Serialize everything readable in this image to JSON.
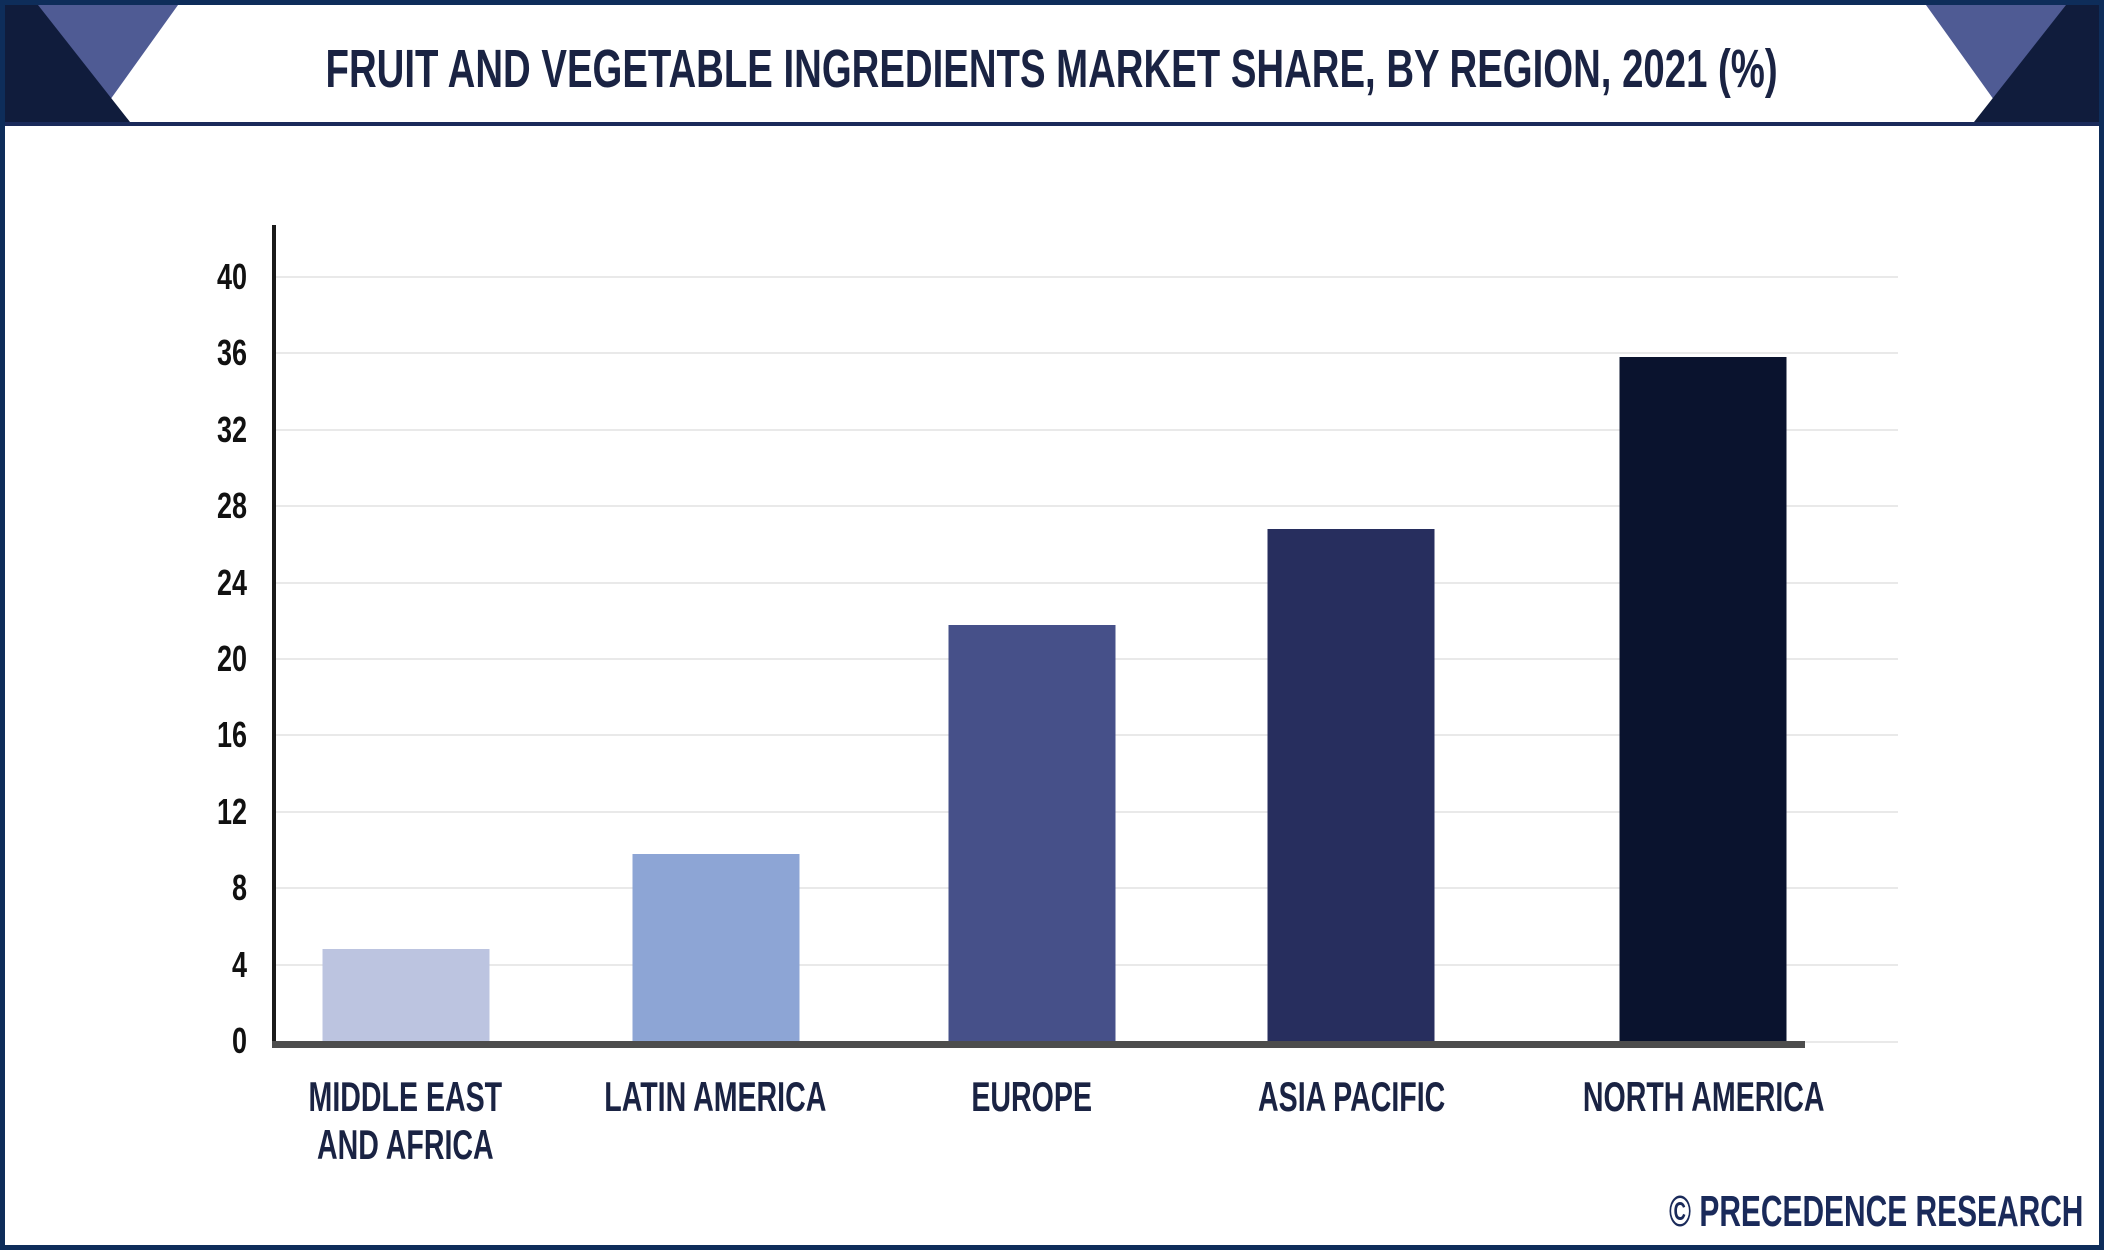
{
  "header": {
    "title": "FRUIT AND VEGETABLE INGREDIENTS MARKET SHARE, BY REGION, 2021 (%)"
  },
  "chart_data": {
    "type": "bar",
    "title": "Fruit and Vegetable Ingredients Market Share, by Region, 2021 (%)",
    "categories": [
      "MIDDLE EAST\nAND AFRICA",
      "LATIN AMERICA",
      "EUROPE",
      "ASIA PACIFIC",
      "NORTH AMERICA"
    ],
    "values": [
      4.8,
      9.8,
      21.8,
      26.8,
      35.8
    ],
    "unit": "%",
    "xlabel": "",
    "ylabel": "",
    "ylim": [
      0,
      40
    ],
    "yticks": [
      0,
      4,
      8,
      12,
      16,
      20,
      24,
      28,
      32,
      36,
      40
    ],
    "grid": "horizontal",
    "legend": "none",
    "bar_colors": [
      "#bcc4e0",
      "#8da5d5",
      "#465089",
      "#272e5e",
      "#0a132e"
    ]
  },
  "footer": {
    "watermark": "© PRECEDENCE RESEARCH"
  },
  "theme": {
    "background": "#ffffff",
    "border_color": "#0e2d5a",
    "header_underline": "#1a2a5a",
    "corner_dark": "#101c3c",
    "corner_light": "#4f5b94",
    "title_color": "#1a2343",
    "tick_color": "#111111",
    "axis_color": "#1a1a1a",
    "baseline_color": "#4d4d4d",
    "gridline_color": "#e9e9e9",
    "watermark_color": "#1a2a5a"
  }
}
